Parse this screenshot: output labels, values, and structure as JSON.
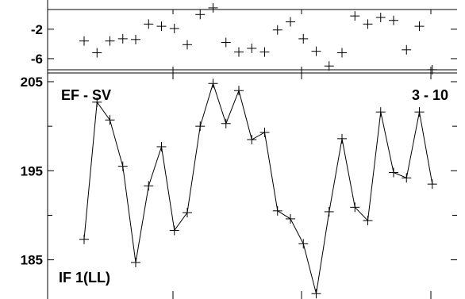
{
  "chart_data": [
    {
      "type": "scatter",
      "title": "",
      "ylim": [
        -8,
        1
      ],
      "y_ticks": [
        -2,
        -6
      ],
      "y_tick_labels": [
        "-2",
        "-6"
      ],
      "x": [
        1,
        2,
        3,
        4,
        5,
        6,
        7,
        8,
        9,
        10,
        11,
        12,
        13,
        14,
        15,
        16,
        17,
        18,
        19,
        20,
        21,
        22,
        23,
        24,
        25,
        26,
        27,
        28,
        29,
        30
      ],
      "values": [
        -3.6,
        -5.2,
        -3.6,
        -3.3,
        -3.4,
        -1.3,
        -1.6,
        -1.9,
        -4.1,
        0.0,
        0.9,
        -3.8,
        -5.1,
        -4.6,
        -5.1,
        -2.1,
        -1.0,
        -3.3,
        -5.0,
        -7.0,
        -5.2,
        -0.2,
        -1.3,
        -0.4,
        -0.8,
        -4.8,
        -1.6,
        -7.5,
        null,
        null
      ]
    },
    {
      "type": "line",
      "title": "EF - SV",
      "corner_label": "3 - 10",
      "bottom_label": "IF 1(LL)",
      "ylim": [
        180.6,
        205
      ],
      "y_ticks": [
        185,
        195,
        205
      ],
      "y_tick_labels": [
        "185",
        "195",
        "205"
      ],
      "x": [
        1,
        2,
        3,
        4,
        5,
        6,
        7,
        8,
        9,
        10,
        11,
        12,
        13,
        14,
        15,
        16,
        17,
        18,
        19,
        20,
        21,
        22,
        23,
        24,
        25,
        26,
        27,
        28
      ],
      "values": [
        187.3,
        202.7,
        200.7,
        195.5,
        184.7,
        193.3,
        197.7,
        188.3,
        190.3,
        200.0,
        204.8,
        200.3,
        204.0,
        198.5,
        199.3,
        190.5,
        189.6,
        186.8,
        181.2,
        190.4,
        198.6,
        190.9,
        189.4,
        201.6,
        194.8,
        194.2,
        201.6,
        193.5
      ]
    }
  ]
}
